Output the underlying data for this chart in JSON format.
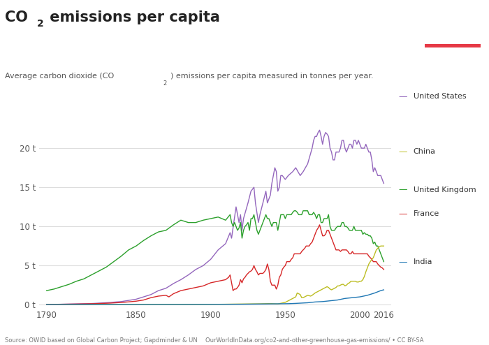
{
  "title_pre": "CO",
  "title_sub": "2",
  "title_post": " emissions per capita",
  "subtitle_pre": "Average carbon dioxide (CO",
  "subtitle_sub": "2",
  "subtitle_post": ") emissions per capita measured in tonnes per year.",
  "source_left": "Source: OWID based on Global Carbon Project; Gapdminder & UN",
  "source_right": "OurWorldInData.org/co2-and-other-greenhouse-gas-emissions/ • CC BY-SA",
  "ylabel_ticks": [
    "0 t",
    "5 t",
    "10 t",
    "15 t",
    "20 t"
  ],
  "ytick_vals": [
    0,
    5,
    10,
    15,
    20
  ],
  "xtick_vals": [
    1790,
    1850,
    1900,
    1950,
    2000,
    2016
  ],
  "xlim": [
    1785,
    2021
  ],
  "ylim": [
    -0.3,
    23.5
  ],
  "background_color": "#ffffff",
  "grid_color": "#dddddd",
  "colors": {
    "United States": "#9467bd",
    "United Kingdom": "#2ca02c",
    "France": "#d62728",
    "China": "#bcbd22",
    "India": "#1f77b4"
  },
  "legend_items": [
    [
      "United States",
      "#9467bd"
    ],
    [
      "China",
      "#bcbd22"
    ],
    [
      "United Kingdom",
      "#2ca02c"
    ],
    [
      "France",
      "#d62728"
    ],
    [
      "India",
      "#1f77b4"
    ]
  ]
}
